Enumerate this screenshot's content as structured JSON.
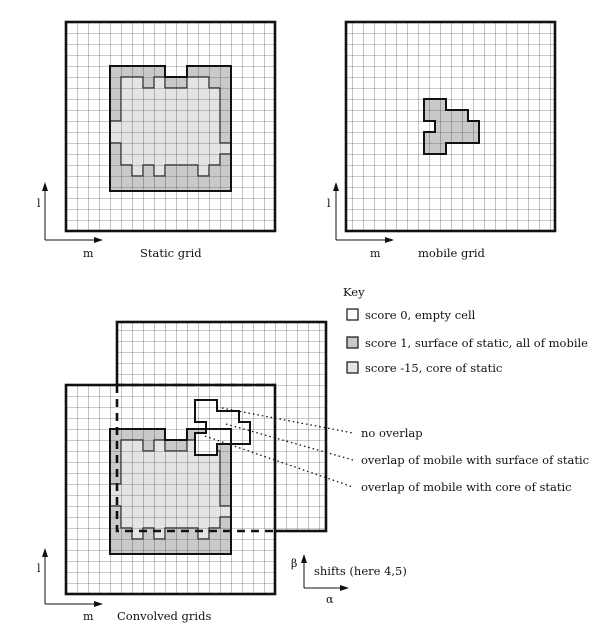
{
  "labels": {
    "static_grid": "Static grid",
    "mobile_grid": "mobile grid",
    "convolved_grids": "Convolved grids",
    "axis_l": "l",
    "axis_m": "m",
    "axis_alpha": "α",
    "axis_beta": "β",
    "shifts": "shifts (here 4,5)"
  },
  "key": {
    "title": "Key",
    "items": [
      {
        "label": "score 0, empty cell",
        "fill": "#ffffff"
      },
      {
        "label": "score 1, surface of static, all of mobile",
        "fill": "#c9c9c9"
      },
      {
        "label": "score -15, core of static",
        "fill": "#e4e4e4"
      }
    ]
  },
  "annotations": [
    "no overlap",
    "overlap of mobile with surface of static",
    "overlap of mobile with core of static"
  ],
  "colors": {
    "surface": "#c9c9c9",
    "core": "#e4e4e4",
    "grid_line": "#333333",
    "empty": "#ffffff"
  }
}
